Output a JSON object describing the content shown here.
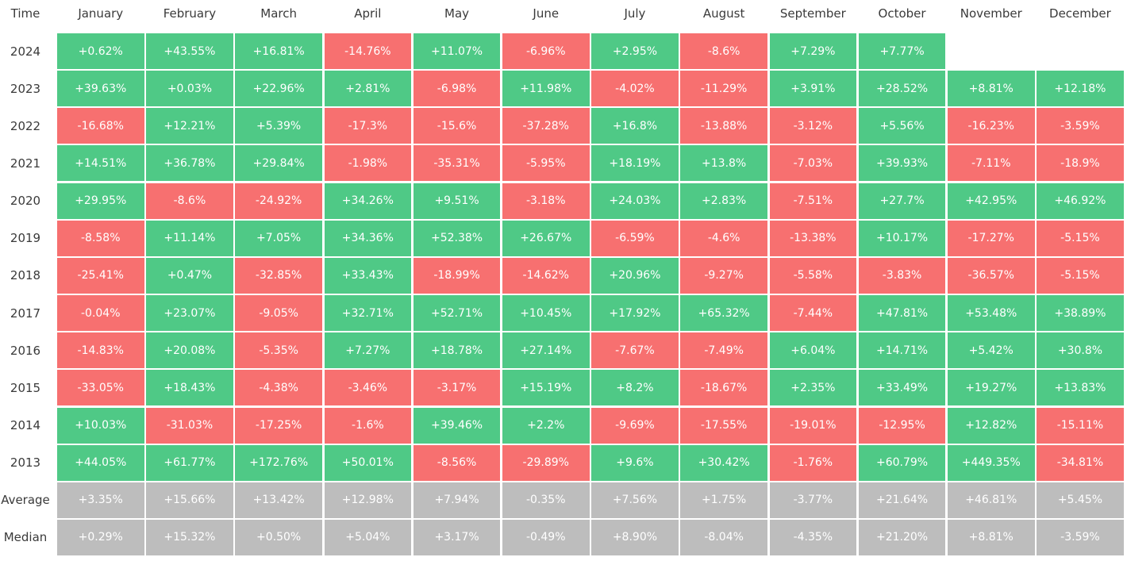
{
  "table": {
    "header": [
      "Time",
      "January",
      "February",
      "March",
      "April",
      "May",
      "June",
      "July",
      "August",
      "September",
      "October",
      "November",
      "December"
    ],
    "rows": [
      {
        "label": "2024",
        "cells": [
          "+0.62%",
          "+43.55%",
          "+16.81%",
          "-14.76%",
          "+11.07%",
          "-6.96%",
          "+2.95%",
          "-8.6%",
          "+7.29%",
          "+7.77%"
        ]
      },
      {
        "label": "2023",
        "cells": [
          "+39.63%",
          "+0.03%",
          "+22.96%",
          "+2.81%",
          "-6.98%",
          "+11.98%",
          "-4.02%",
          "-11.29%",
          "+3.91%",
          "+28.52%",
          "+8.81%",
          "+12.18%"
        ]
      },
      {
        "label": "2022",
        "cells": [
          "-16.68%",
          "+12.21%",
          "+5.39%",
          "-17.3%",
          "-15.6%",
          "-37.28%",
          "+16.8%",
          "-13.88%",
          "-3.12%",
          "+5.56%",
          "-16.23%",
          "-3.59%"
        ]
      },
      {
        "label": "2021",
        "cells": [
          "+14.51%",
          "+36.78%",
          "+29.84%",
          "-1.98%",
          "-35.31%",
          "-5.95%",
          "+18.19%",
          "+13.8%",
          "-7.03%",
          "+39.93%",
          "-7.11%",
          "-18.9%"
        ]
      },
      {
        "label": "2020",
        "cells": [
          "+29.95%",
          "-8.6%",
          "-24.92%",
          "+34.26%",
          "+9.51%",
          "-3.18%",
          "+24.03%",
          "+2.83%",
          "-7.51%",
          "+27.7%",
          "+42.95%",
          "+46.92%"
        ]
      },
      {
        "label": "2019",
        "cells": [
          "-8.58%",
          "+11.14%",
          "+7.05%",
          "+34.36%",
          "+52.38%",
          "+26.67%",
          "-6.59%",
          "-4.6%",
          "-13.38%",
          "+10.17%",
          "-17.27%",
          "-5.15%"
        ]
      },
      {
        "label": "2018",
        "cells": [
          "-25.41%",
          "+0.47%",
          "-32.85%",
          "+33.43%",
          "-18.99%",
          "-14.62%",
          "+20.96%",
          "-9.27%",
          "-5.58%",
          "-3.83%",
          "-36.57%",
          "-5.15%"
        ]
      },
      {
        "label": "2017",
        "cells": [
          "-0.04%",
          "+23.07%",
          "-9.05%",
          "+32.71%",
          "+52.71%",
          "+10.45%",
          "+17.92%",
          "+65.32%",
          "-7.44%",
          "+47.81%",
          "+53.48%",
          "+38.89%"
        ]
      },
      {
        "label": "2016",
        "cells": [
          "-14.83%",
          "+20.08%",
          "-5.35%",
          "+7.27%",
          "+18.78%",
          "+27.14%",
          "-7.67%",
          "-7.49%",
          "+6.04%",
          "+14.71%",
          "+5.42%",
          "+30.8%"
        ]
      },
      {
        "label": "2015",
        "cells": [
          "-33.05%",
          "+18.43%",
          "-4.38%",
          "-3.46%",
          "-3.17%",
          "+15.19%",
          "+8.2%",
          "-18.67%",
          "+2.35%",
          "+33.49%",
          "+19.27%",
          "+13.83%"
        ]
      },
      {
        "label": "2014",
        "cells": [
          "+10.03%",
          "-31.03%",
          "-17.25%",
          "-1.6%",
          "+39.46%",
          "+2.2%",
          "-9.69%",
          "-17.55%",
          "-19.01%",
          "-12.95%",
          "+12.82%",
          "-15.11%"
        ]
      },
      {
        "label": "2013",
        "cells": [
          "+44.05%",
          "+61.77%",
          "+172.76%",
          "+50.01%",
          "-8.56%",
          "-29.89%",
          "+9.6%",
          "+30.42%",
          "-1.76%",
          "+60.79%",
          "+449.35%",
          "-34.81%"
        ]
      }
    ],
    "summary_rows": [
      {
        "label": "Average",
        "cells": [
          "+3.35%",
          "+15.66%",
          "+13.42%",
          "+12.98%",
          "+7.94%",
          "-0.35%",
          "+7.56%",
          "+1.75%",
          "-3.77%",
          "+21.64%",
          "+46.81%",
          "+5.45%"
        ]
      },
      {
        "label": "Median",
        "cells": [
          "+0.29%",
          "+15.32%",
          "+0.50%",
          "+5.04%",
          "+3.17%",
          "-0.49%",
          "+8.90%",
          "-8.04%",
          "-4.35%",
          "+21.20%",
          "+8.81%",
          "-3.59%"
        ]
      }
    ]
  },
  "colors": {
    "positive": "#4fc986",
    "negative": "#f77070",
    "summary": "#bdbdbd"
  }
}
